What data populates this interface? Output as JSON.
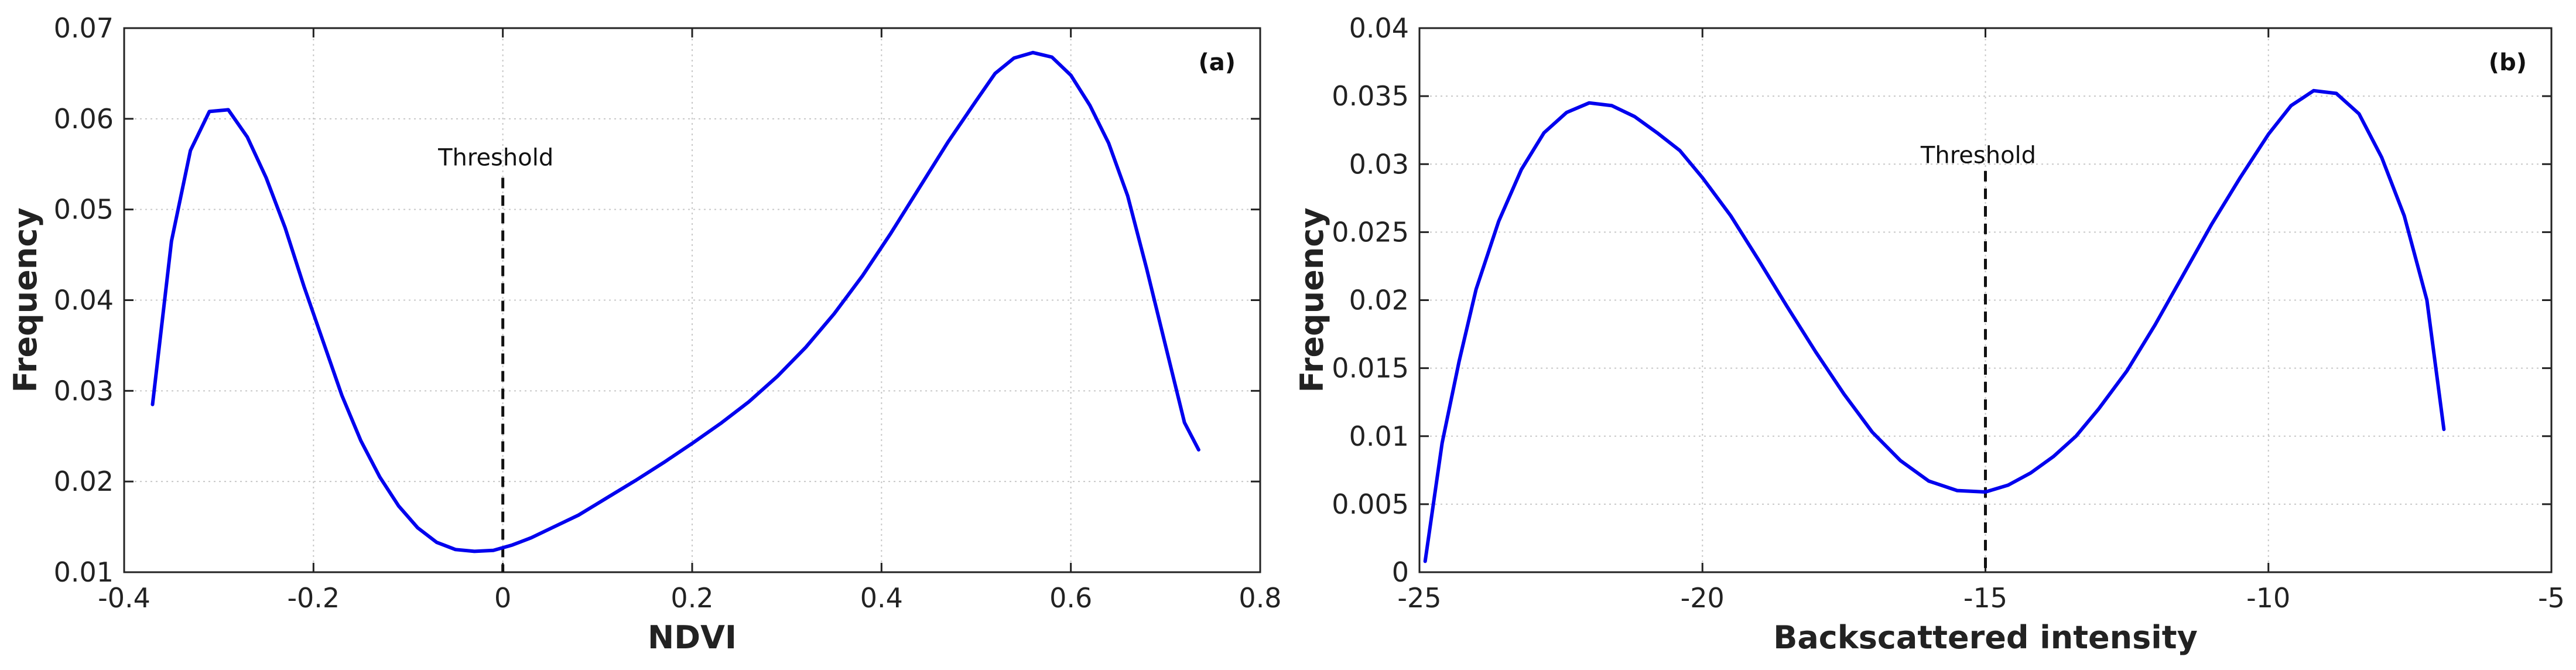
{
  "chart_data": [
    {
      "type": "line",
      "panel_label": "(a)",
      "xlabel": "NDVI",
      "ylabel": "Frequency",
      "xlim": [
        -0.4,
        0.8
      ],
      "ylim": [
        0.01,
        0.07
      ],
      "xticks": [
        -0.4,
        -0.2,
        0,
        0.2,
        0.4,
        0.6,
        0.8
      ],
      "xtick_labels": [
        "-0.4",
        "-0.2",
        "0",
        "0.2",
        "0.4",
        "0.6",
        "0.8"
      ],
      "yticks": [
        0.01,
        0.02,
        0.03,
        0.04,
        0.05,
        0.06,
        0.07
      ],
      "ytick_labels": [
        "0.01",
        "0.02",
        "0.03",
        "0.04",
        "0.05",
        "0.06",
        "0.07"
      ],
      "grid": true,
      "line_color": "#0000ee",
      "threshold": {
        "x": 0,
        "y_top": 0.0535,
        "label": "Threshold",
        "label_y": 0.0555
      },
      "series": [
        {
          "x": [
            -0.37,
            -0.35,
            -0.33,
            -0.31,
            -0.29,
            -0.27,
            -0.25,
            -0.23,
            -0.21,
            -0.19,
            -0.17,
            -0.15,
            -0.13,
            -0.11,
            -0.09,
            -0.07,
            -0.05,
            -0.03,
            -0.01,
            0.01,
            0.03,
            0.05,
            0.08,
            0.11,
            0.14,
            0.17,
            0.2,
            0.23,
            0.26,
            0.29,
            0.32,
            0.35,
            0.38,
            0.41,
            0.44,
            0.47,
            0.5,
            0.52,
            0.54,
            0.56,
            0.58,
            0.6,
            0.62,
            0.64,
            0.66,
            0.68,
            0.7,
            0.72,
            0.735
          ],
          "y": [
            0.0285,
            0.0465,
            0.0565,
            0.0608,
            0.061,
            0.058,
            0.0535,
            0.048,
            0.0415,
            0.0355,
            0.0295,
            0.0245,
            0.0205,
            0.0173,
            0.0149,
            0.0133,
            0.0125,
            0.0123,
            0.0124,
            0.013,
            0.0138,
            0.0148,
            0.0163,
            0.0182,
            0.0201,
            0.0221,
            0.0242,
            0.0264,
            0.0288,
            0.0316,
            0.0348,
            0.0385,
            0.0427,
            0.0474,
            0.0524,
            0.0574,
            0.062,
            0.065,
            0.0667,
            0.0673,
            0.0668,
            0.0648,
            0.0615,
            0.0573,
            0.0515,
            0.0435,
            0.035,
            0.0265,
            0.0235
          ]
        }
      ]
    },
    {
      "type": "line",
      "panel_label": "(b)",
      "xlabel": "Backscattered intensity",
      "ylabel": "Frequency",
      "xlim": [
        -25,
        -5
      ],
      "ylim": [
        0,
        0.04
      ],
      "xticks": [
        -25,
        -20,
        -15,
        -10,
        -5
      ],
      "xtick_labels": [
        "-25",
        "-20",
        "-15",
        "-10",
        "-5"
      ],
      "yticks": [
        0,
        0.005,
        0.01,
        0.015,
        0.02,
        0.025,
        0.03,
        0.035,
        0.04
      ],
      "ytick_labels": [
        "0",
        "0.005",
        "0.01",
        "0.015",
        "0.02",
        "0.025",
        "0.03",
        "0.035",
        "0.04"
      ],
      "grid": true,
      "line_color": "#0000ee",
      "threshold": {
        "x": -15,
        "y_top": 0.0295,
        "label": "Threshold",
        "label_y": 0.0305
      },
      "series": [
        {
          "x": [
            -24.9,
            -24.6,
            -24.3,
            -24.0,
            -23.6,
            -23.2,
            -22.8,
            -22.4,
            -22.0,
            -21.6,
            -21.2,
            -20.8,
            -20.4,
            -20.0,
            -19.5,
            -19.0,
            -18.5,
            -18.0,
            -17.5,
            -17.0,
            -16.5,
            -16.0,
            -15.5,
            -15.0,
            -14.6,
            -14.2,
            -13.8,
            -13.4,
            -13.0,
            -12.5,
            -12.0,
            -11.5,
            -11.0,
            -10.5,
            -10.0,
            -9.6,
            -9.2,
            -8.8,
            -8.4,
            -8.0,
            -7.6,
            -7.2,
            -6.9
          ],
          "y": [
            0.0008,
            0.0095,
            0.0155,
            0.0208,
            0.0258,
            0.0296,
            0.0323,
            0.0338,
            0.0345,
            0.0343,
            0.0335,
            0.0323,
            0.031,
            0.029,
            0.0262,
            0.0229,
            0.0195,
            0.0162,
            0.0131,
            0.0103,
            0.0082,
            0.0067,
            0.006,
            0.0059,
            0.0064,
            0.0073,
            0.0085,
            0.01,
            0.012,
            0.0148,
            0.0182,
            0.0219,
            0.0256,
            0.029,
            0.0322,
            0.0343,
            0.0354,
            0.0352,
            0.0337,
            0.0305,
            0.0262,
            0.02,
            0.0105
          ]
        }
      ]
    }
  ]
}
